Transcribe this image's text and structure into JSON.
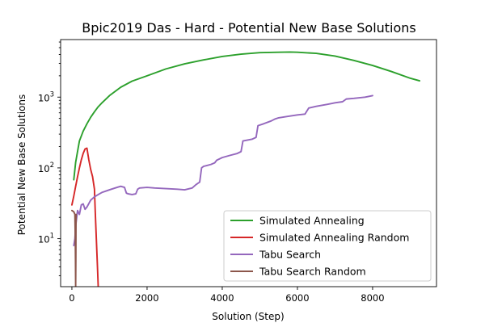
{
  "chart_data": {
    "type": "line",
    "title": "Bpic2019 Das - Hard - Potential New Base Solutions",
    "xlabel": "Solution (Step)",
    "ylabel": "Potential New Base Solutions",
    "xlim": [
      -300,
      9700
    ],
    "ylim": [
      2.1,
      6500
    ],
    "yscale": "log",
    "grid": false,
    "legend_position": "lower-right",
    "x_ticks": [
      {
        "value": 0,
        "label": "0"
      },
      {
        "value": 2000,
        "label": "2000"
      },
      {
        "value": 4000,
        "label": "4000"
      },
      {
        "value": 6000,
        "label": "6000"
      },
      {
        "value": 8000,
        "label": "8000"
      }
    ],
    "y_ticks": [
      {
        "value": 10,
        "base": "10",
        "exp": "1"
      },
      {
        "value": 100,
        "base": "10",
        "exp": "2"
      },
      {
        "value": 1000,
        "base": "10",
        "exp": "3"
      }
    ],
    "series": [
      {
        "name": "Simulated Annealing",
        "color": "#2ca02c",
        "x": [
          50,
          100,
          150,
          200,
          300,
          400,
          500,
          600,
          700,
          800,
          1000,
          1300,
          1600,
          2000,
          2500,
          3000,
          3500,
          4000,
          4500,
          5000,
          5500,
          5800,
          6000,
          6500,
          7000,
          7500,
          8000,
          8500,
          9000,
          9250
        ],
        "y": [
          68,
          120,
          170,
          240,
          330,
          420,
          520,
          620,
          730,
          830,
          1050,
          1380,
          1680,
          2000,
          2500,
          2950,
          3350,
          3750,
          4050,
          4250,
          4300,
          4330,
          4300,
          4150,
          3800,
          3300,
          2800,
          2300,
          1850,
          1700
        ]
      },
      {
        "name": "Simulated Annealing Random",
        "color": "#d62728",
        "x": [
          0,
          50,
          100,
          150,
          200,
          250,
          300,
          350,
          400,
          450,
          500,
          550,
          600,
          620,
          650,
          680,
          700
        ],
        "y": [
          30,
          40,
          55,
          75,
          100,
          130,
          160,
          185,
          190,
          130,
          95,
          75,
          50,
          25,
          10,
          4,
          2.1
        ]
      },
      {
        "name": "Tabu Search",
        "color": "#9467bd",
        "x": [
          50,
          80,
          100,
          150,
          200,
          250,
          300,
          350,
          400,
          500,
          550,
          600,
          700,
          800,
          900,
          1000,
          1100,
          1200,
          1300,
          1400,
          1450,
          1500,
          1600,
          1700,
          1750,
          1800,
          2000,
          2200,
          2500,
          2800,
          3000,
          3200,
          3300,
          3400,
          3450,
          3500,
          3700,
          3800,
          3850,
          4000,
          4200,
          4400,
          4500,
          4550,
          4800,
          4900,
          4950,
          5100,
          5300,
          5400,
          5500,
          5700,
          6000,
          6200,
          6300,
          6500,
          6800,
          7000,
          7200,
          7300,
          7500,
          7800,
          8000
        ],
        "y": [
          8,
          10,
          15,
          25,
          22,
          30,
          31,
          26,
          28,
          35,
          37,
          39,
          42,
          45,
          47,
          49,
          51,
          53,
          55,
          53,
          44,
          43,
          42,
          43,
          50,
          52,
          53,
          52,
          51,
          50,
          49,
          52,
          58,
          63,
          100,
          105,
          112,
          118,
          128,
          140,
          150,
          160,
          170,
          240,
          255,
          270,
          395,
          420,
          460,
          490,
          510,
          530,
          560,
          575,
          700,
          740,
          790,
          830,
          860,
          940,
          960,
          1000,
          1050
        ]
      },
      {
        "name": "Tabu Search Random",
        "color": "#8c564b",
        "x": [
          0,
          50,
          80,
          90,
          95,
          100,
          105,
          110
        ],
        "y": [
          25,
          24,
          22,
          10,
          5,
          2.1,
          5,
          22
        ]
      }
    ]
  }
}
